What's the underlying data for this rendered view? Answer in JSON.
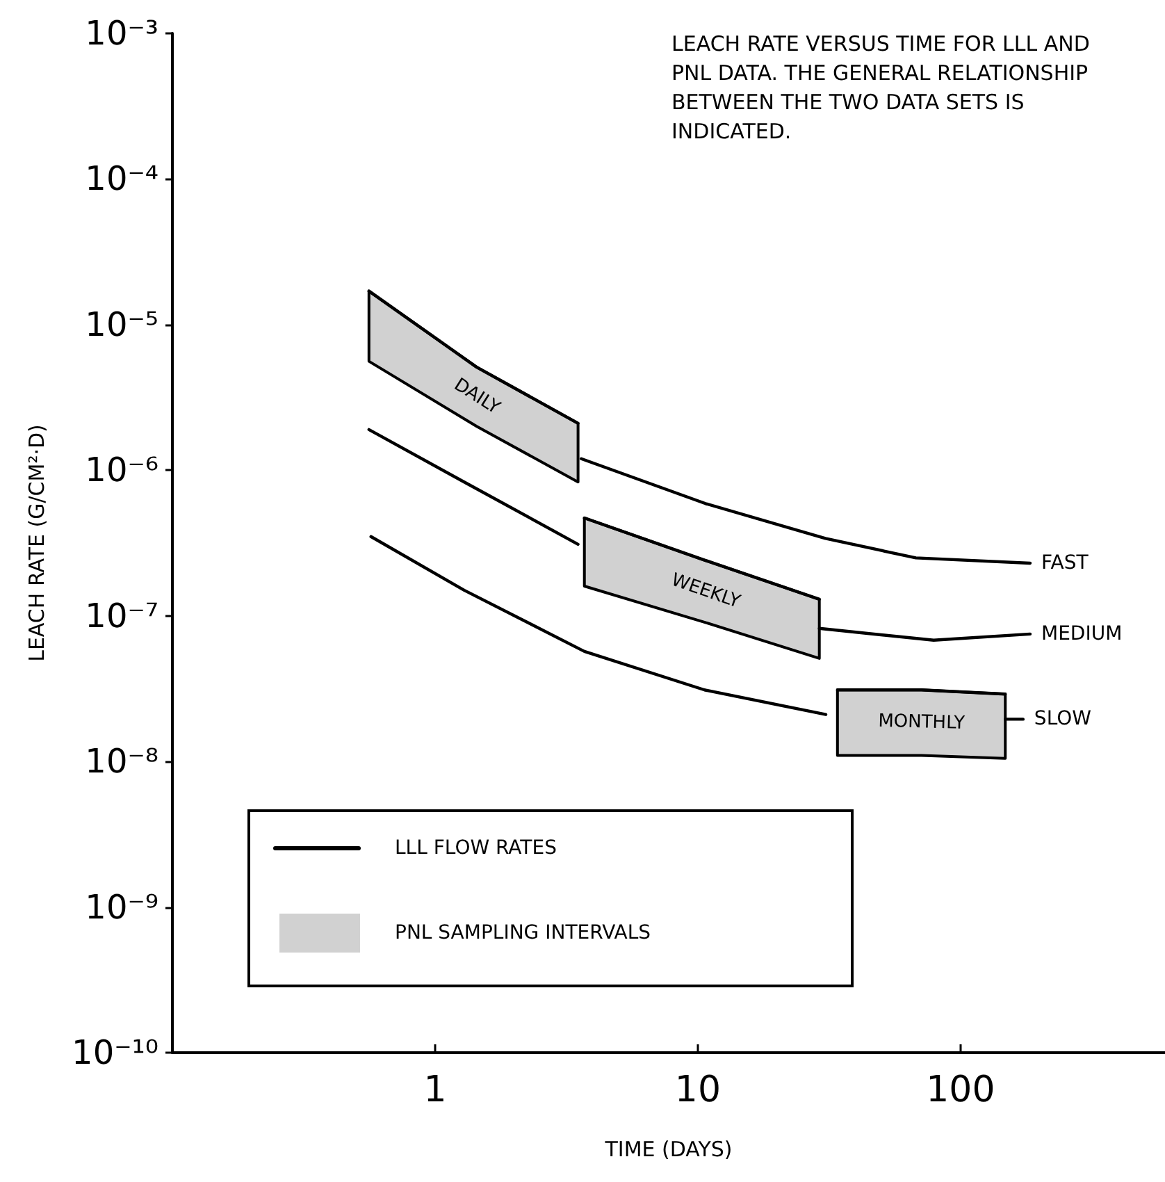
{
  "chart_data": {
    "type": "line",
    "title": "LEACH RATE VERSUS TIME FOR LLL AND PNL DATA. THE GENERAL RELATIONSHIP BETWEEN THE TWO DATA SETS IS INDICATED.",
    "xlabel": "TIME (DAYS)",
    "ylabel": "LEACH RATE (G/CM²·D)",
    "log": "xy",
    "grid": false,
    "marker": "none",
    "line_style": "solid",
    "xlim": [
      0.1,
      600
    ],
    "xticks": [
      1,
      10,
      100
    ],
    "ylim": [
      1e-10,
      0.001
    ],
    "yticks": [
      {
        "value": 0.001,
        "label": "10⁻³"
      },
      {
        "value": 0.0001,
        "label": "10⁻⁴"
      },
      {
        "value": 1e-05,
        "label": "10⁻⁵"
      },
      {
        "value": 1e-06,
        "label": "10⁻⁶"
      },
      {
        "value": 1e-07,
        "label": "10⁻⁷"
      },
      {
        "value": 1e-08,
        "label": "10⁻⁸"
      },
      {
        "value": 1e-09,
        "label": "10⁻⁹"
      },
      {
        "value": 1e-10,
        "label": "10⁻¹⁰"
      }
    ],
    "annotations": [
      "LLL FLOW RATES",
      "PNL SAMPLING INTERVALS"
    ],
    "series": [
      {
        "name": "FAST",
        "color": "#000000",
        "x": [
          3.6,
          10.7,
          30.6,
          67.6,
          184
        ],
        "values": [
          1.2e-06,
          5.9e-07,
          3.4e-07,
          2.5e-07,
          2.3e-07
        ]
      },
      {
        "name": "MEDIUM",
        "color": "#000000",
        "x": [
          0.56,
          1.29,
          3.5,
          10,
          29,
          79,
          184
        ],
        "values": [
          1.9e-06,
          8.3e-07,
          3.1e-07,
          null,
          8.2e-08,
          6.8e-08,
          7.5e-08
        ]
      },
      {
        "name": "SLOW",
        "color": "#000000",
        "x": [
          0.57,
          1.29,
          3.7,
          10.6,
          30.7,
          70,
          148,
          173
        ],
        "values": [
          3.5e-07,
          1.5e-07,
          5.7e-08,
          3.1e-08,
          2.1e-08,
          null,
          1.95e-08,
          1.95e-08
        ]
      },
      {
        "name": "DAILY",
        "color": "#000000",
        "x": [
          0.56,
          1.44,
          3.5
        ],
        "lower": [
          5.6e-06,
          2e-06,
          8.3e-07
        ],
        "values": [
          1.7e-05,
          5.1e-06,
          2.1e-06
        ],
        "upper": [
          1.7e-05,
          5.1e-06,
          2.1e-06
        ]
      },
      {
        "name": "WEEKLY",
        "color": "#000000",
        "x": [
          3.7,
          10.7,
          29
        ],
        "lower": [
          1.6e-07,
          9e-08,
          5.1e-08
        ],
        "values": [
          4.7e-07,
          2.4e-07,
          1.3e-07
        ],
        "upper": [
          4.7e-07,
          2.4e-07,
          1.3e-07
        ]
      },
      {
        "name": "MONTHLY",
        "color": "#000000",
        "x": [
          34,
          71,
          148
        ],
        "lower": [
          1.1e-08,
          1.1e-08,
          1.05e-08
        ],
        "values": [
          3.1e-08,
          3.1e-08,
          2.9e-08
        ],
        "upper": [
          3.1e-08,
          3.1e-08,
          2.9e-08
        ]
      }
    ]
  }
}
